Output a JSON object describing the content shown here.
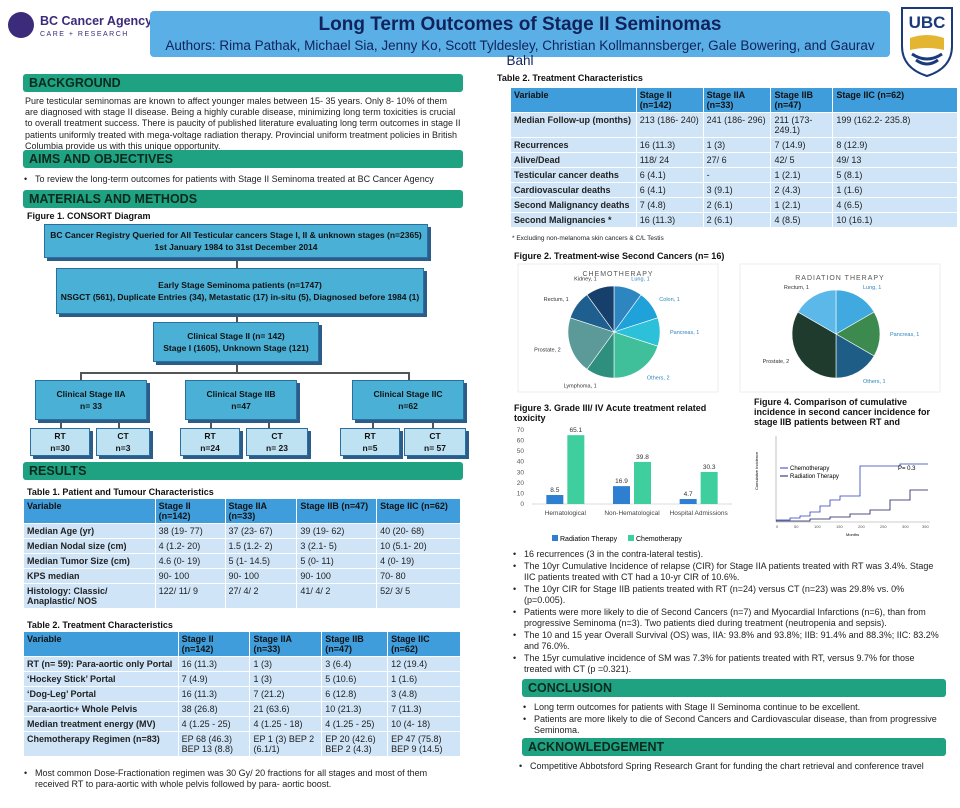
{
  "header": {
    "title": "Long Term Outcomes of Stage II Seminomas",
    "authors": "Authors: Rima Pathak, Michael Sia, Jenny Ko, Scott Tyldesley, Christian Kollmannsberger, Gale Bowering, and Gaurav Bahl",
    "logo_left_name": "BC Cancer Agency",
    "logo_left_sub": "CARE + RESEARCH",
    "logo_right": "UBC",
    "brand_color": "#5aafe6",
    "section_color": "#1fa281",
    "table_header_color": "#3f9ddc"
  },
  "background": {
    "heading": "BACKGROUND",
    "text": "Pure testicular seminomas are known to affect younger males between 15- 35 years. Only 8- 10% of them are diagnosed with stage II disease. Being a highly curable disease, minimizing long term toxicities is crucial to overall treatment success. There is paucity of published literature evaluating long term outcomes in stage II patients uniformly treated with mega-voltage radiation therapy. Provincial uniform treatment policies in British Columbia provide us with this unique opportunity."
  },
  "aims": {
    "heading": "AIMS AND OBJECTIVES",
    "bullet": "To review the long-term outcomes for patients with Stage II Seminoma treated at BC Cancer Agency"
  },
  "methods": {
    "heading": "MATERIALS AND METHODS",
    "fig1_title": "Figure 1. CONSORT Diagram",
    "box1_l1": "BC Cancer Registry Queried for All Testicular cancers Stage I, II & unknown stages (n=2365)",
    "box1_l2": "1st January 1984 to 31st December 2014",
    "box2_l1": "Early Stage Seminoma patients (n=1747)",
    "box2_l2": "NSGCT (561), Duplicate Entries (34), Metastatic (17) in-situ (5), Diagnosed before 1984 (1)",
    "box3_l1": "Clinical Stage II (n= 142)",
    "box3_l2": "Stage I (1605), Unknown Stage (121)",
    "iia_l1": "Clinical Stage IIA",
    "iia_l2": "n= 33",
    "iib_l1": "Clinical Stage IIB",
    "iib_l2": "n=47",
    "iic_l1": "Clinical Stage IIC",
    "iic_l2": "n=62",
    "leaf": [
      {
        "t": "RT",
        "n": "n=30"
      },
      {
        "t": "CT",
        "n": "n=3"
      },
      {
        "t": "RT",
        "n": "n=24"
      },
      {
        "t": "CT",
        "n": "n= 23"
      },
      {
        "t": "RT",
        "n": "n=5"
      },
      {
        "t": "CT",
        "n": "n= 57"
      }
    ]
  },
  "results": {
    "heading": "RESULTS",
    "t1_title": "Table 1. Patient and Tumour Characteristics",
    "t1_head": [
      "Variable",
      "Stage II (n=142)",
      "Stage IIA (n=33)",
      "Stage IIB (n=47)",
      "Stage IIC (n=62)"
    ],
    "t1_rows": [
      [
        "Median Age (yr)",
        "38 (19- 77)",
        "37 (23- 67)",
        "39 (19- 62)",
        "40 (20- 68)"
      ],
      [
        "Median Nodal size (cm)",
        "4 (1.2- 20)",
        "1.5 (1.2- 2)",
        "3 (2.1- 5)",
        "10 (5.1- 20)"
      ],
      [
        "Median Tumor Size (cm)",
        "4.6 (0- 19)",
        "5 (1- 14.5)",
        "5 (0- 11)",
        "4 (0- 19)"
      ],
      [
        "KPS median",
        "90- 100",
        "90- 100",
        "90- 100",
        "70- 80"
      ],
      [
        "Histology: Classic/ Anaplastic/ NOS",
        "122/ 11/ 9",
        "27/ 4/ 2",
        "41/ 4/ 2",
        "52/ 3/ 5"
      ]
    ],
    "t2_title": "Table 2. Treatment Characteristics",
    "t2_head": [
      "Variable",
      "Stage II (n=142)",
      "Stage IIA (n=33)",
      "Stage IIB (n=47)",
      "Stage IIC (n=62)"
    ],
    "t2_rows": [
      [
        "RT (n= 59): Para-aortic only Portal",
        "16 (11.3)",
        "1 (3)",
        "3 (6.4)",
        "12 (19.4)"
      ],
      [
        "‘Hockey Stick’ Portal",
        "7 (4.9)",
        "1 (3)",
        "5 (10.6)",
        "1 (1.6)"
      ],
      [
        "‘Dog-Leg’ Portal",
        "16 (11.3)",
        "7 (21.2)",
        "6 (12.8)",
        "3 (4.8)"
      ],
      [
        "Para-aortic+ Whole Pelvis",
        "38 (26.8)",
        "21 (63.6)",
        "10 (21.3)",
        "7 (11.3)"
      ],
      [
        "Median treatment energy (MV)",
        "4 (1.25 - 25)",
        "4 (1.25 - 18)",
        "4 (1.25 - 25)",
        "10 (4- 18)"
      ],
      [
        "Chemotherapy Regimen (n=83)",
        "EP 68 (46.3) BEP 13 (8.8)",
        "EP 1 (3) BEP 2 (6.1/1)",
        "EP 20 (42.6) BEP 2 (4.3)",
        "EP 47 (75.8) BEP 9 (14.5)"
      ]
    ],
    "frac_note": "Most common Dose-Fractionation regimen was 30 Gy/ 20 fractions for all stages and most of them received RT to para-aortic with whole pelvis followed by para- aortic boost."
  },
  "right_table": {
    "title": "Table 2. Treatment Characteristics",
    "head": [
      "Variable",
      "Stage II (n=142)",
      "Stage IIA (n=33)",
      "Stage IIB (n=47)",
      "Stage IIC (n=62)"
    ],
    "rows": [
      [
        "Median Follow-up (months)",
        "213 (186- 240)",
        "241 (186- 296)",
        "211 (173- 249.1)",
        "199 (162.2- 235.8)"
      ],
      [
        "Recurrences",
        "16 (11.3)",
        "1 (3)",
        "7 (14.9)",
        "8 (12.9)"
      ],
      [
        "Alive/Dead",
        "118/ 24",
        "27/ 6",
        "42/ 5",
        "49/ 13"
      ],
      [
        "Testicular cancer deaths",
        "6 (4.1)",
        "-",
        "1 (2.1)",
        "5 (8.1)"
      ],
      [
        "Cardiovascular deaths",
        "6 (4.1)",
        "3 (9.1)",
        "2 (4.3)",
        "1 (1.6)"
      ],
      [
        "Second Malignancy deaths",
        "7 (4.8)",
        "2 (6.1)",
        "1 (2.1)",
        "4 (6.5)"
      ],
      [
        "Second Malignancies *",
        "16 (11.3)",
        "2 (6.1)",
        "4 (8.5)",
        "10 (16.1)"
      ]
    ],
    "note": "* Excluding non-melanoma skin cancers & C/L Testis"
  },
  "fig2": {
    "title": "Figure 2. Treatment-wise Second Cancers (n= 16)",
    "chemo_title": "CHEMOTHERAPY",
    "rad_title": "RADIATION THERAPY",
    "chemo_slices": [
      {
        "label": "Lung, 1",
        "value": 1,
        "color": "#2e86c1"
      },
      {
        "label": "Colon, 1",
        "value": 1,
        "color": "#1fa1d9"
      },
      {
        "label": "Pancreas, 1",
        "value": 1,
        "color": "#2cc1d9"
      },
      {
        "label": "Others, 2",
        "value": 2,
        "color": "#3fbf9a"
      },
      {
        "label": "Lymphoma, 1",
        "value": 1,
        "color": "#2f8f7f"
      },
      {
        "label": "Prostate, 2",
        "value": 2,
        "color": "#5c9a9a"
      },
      {
        "label": "Rectum, 1",
        "value": 1,
        "color": "#1e5f8f"
      },
      {
        "label": "Kidney, 1",
        "value": 1,
        "color": "#173f6b"
      }
    ],
    "rad_slices": [
      {
        "label": "Lung, 1",
        "value": 1,
        "color": "#3fa9e0"
      },
      {
        "label": "Pancreas, 1",
        "value": 1,
        "color": "#3d8a4f"
      },
      {
        "label": "Others, 1",
        "value": 1,
        "color": "#1d5d86"
      },
      {
        "label": "Prostate, 2",
        "value": 2,
        "color": "#1f3b2d"
      },
      {
        "label": "Rectum, 1",
        "value": 1,
        "color": "#5cb8e8"
      }
    ]
  },
  "fig3": {
    "title": "Figure 3. Grade III/ IV Acute treatment related toxicity",
    "chart_data": {
      "type": "bar",
      "categories": [
        "Hematological",
        "Non-Hematological",
        "Hospital Admissions"
      ],
      "series": [
        {
          "name": "Radiation Therapy",
          "values": [
            8.5,
            16.9,
            4.7
          ],
          "color": "#2e7fd1"
        },
        {
          "name": "Chemotherapy",
          "values": [
            65.1,
            39.8,
            30.3
          ],
          "color": "#3fcf9f"
        }
      ],
      "ylim": [
        0,
        70
      ],
      "yticks": [
        0,
        10,
        20,
        30,
        40,
        50,
        60,
        70
      ]
    }
  },
  "fig4": {
    "title": "Figure 4. Comparison of cumulative incidence in second cancer incidence for stage IIB patients between RT and",
    "ylabel": "Cumulative Incidence",
    "xlabel": "Months",
    "legend": [
      "Chemotherapy",
      "Radiation Therapy"
    ],
    "p_label": "P= 0.3",
    "xticks": [
      "0",
      "50",
      "100",
      "150",
      "200",
      "250",
      "300",
      "350"
    ]
  },
  "findings": [
    "16 recurrences (3 in the contra-lateral testis).",
    "The 10yr Cumulative Incidence of relapse (CIR) for Stage IIA patients treated with RT was 3.4%. Stage IIC patients treated with CT had a 10-yr CIR of 10.6%.",
    "The 10yr CIR for Stage IIB patients treated with RT (n=24) versus CT (n=23) was 29.8% vs. 0% (p=0.005).",
    "Patients were more likely to die of Second Cancers (n=7) and Myocardial Infarctions (n=6), than from progressive Seminoma (n=3). Two patients died during treatment (neutropenia and sepsis).",
    "The 10 and 15 year Overall Survival (OS) was, IIA: 93.8% and 93.8%; IIB: 91.4% and 88.3%; IIC: 83.2% and 76.0%.",
    "The 15yr cumulative incidence of SM was 7.3% for patients treated with RT, versus 9.7% for those treated with CT (p =0.321)."
  ],
  "conclusion": {
    "heading": "CONCLUSION",
    "bullets": [
      "Long term outcomes for patients with Stage II Seminoma continue to be excellent.",
      "Patients are more likely to die of Second Cancers and Cardiovascular disease, than from progressive Seminoma."
    ]
  },
  "acknowledgement": {
    "heading": "ACKNOWLEDGEMENT",
    "text": "Competitive Abbotsford Spring Research Grant for funding the chart retrieval and conference travel"
  }
}
